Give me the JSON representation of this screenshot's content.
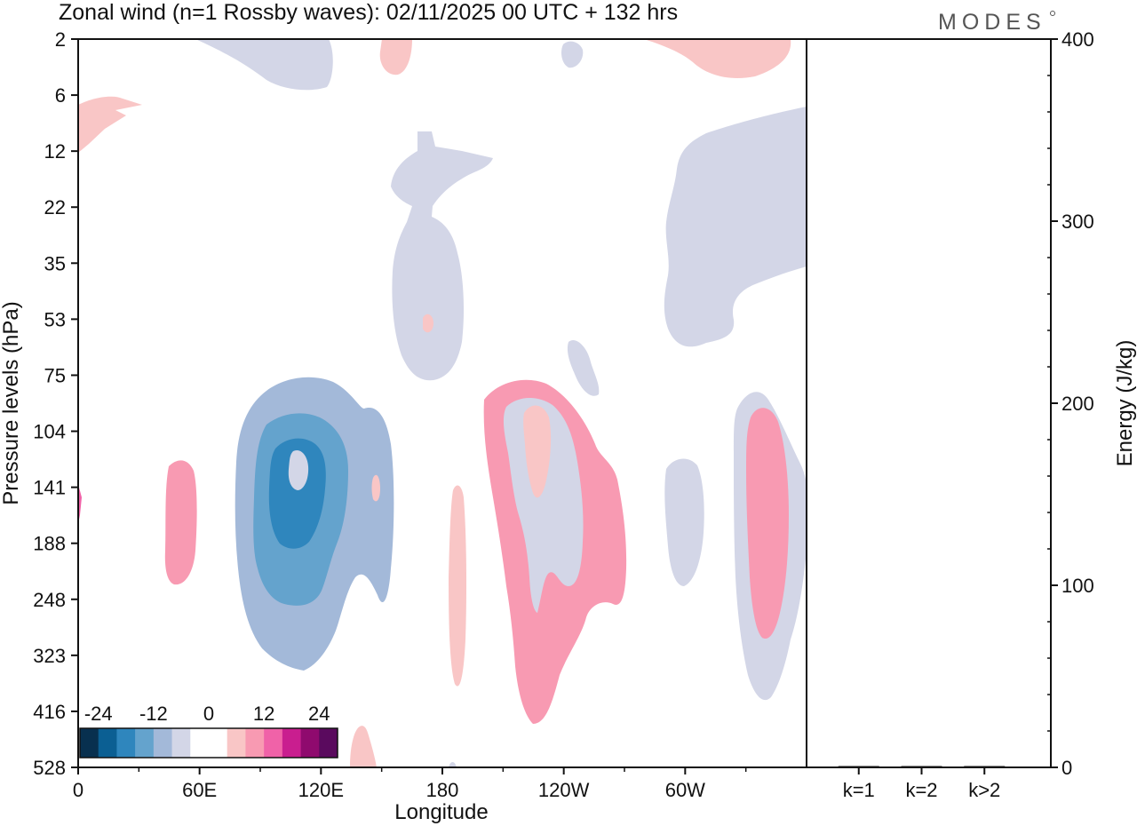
{
  "chart_data": {
    "type": "contour",
    "title": "Zonal wind (n=1 Rossby waves):  02/11/2025  00 UTC  + 132 hrs",
    "logo": "MODES",
    "xlabel": "Longitude",
    "ylabel": "Pressure levels (hPa)",
    "y2label": "Energy (J/kg)",
    "x_tick_labels": [
      "0",
      "60E",
      "120E",
      "180",
      "120W",
      "60W"
    ],
    "x_tick_degrees": [
      0,
      60,
      120,
      180,
      240,
      300
    ],
    "x_range_degrees": [
      0,
      360
    ],
    "pressure_levels": [
      "2",
      "6",
      "12",
      "22",
      "35",
      "53",
      "75",
      "104",
      "141",
      "188",
      "248",
      "323",
      "416",
      "528"
    ],
    "energy_ticks": [
      "0",
      "100",
      "200",
      "300",
      "400"
    ],
    "energy_range": [
      0,
      400
    ],
    "energy_bars": [
      {
        "label": "k=1",
        "value": 0.5
      },
      {
        "label": "k=2",
        "value": 0.5
      },
      {
        "label": "k>2",
        "value": 0.5
      }
    ],
    "colorbar": {
      "labels": [
        "-24",
        "-12",
        "0",
        "12",
        "24"
      ],
      "label_values": [
        -24,
        -12,
        0,
        12,
        24
      ],
      "range": [
        -28,
        28
      ],
      "colors": [
        "#08304f",
        "#0b5f93",
        "#2f86bd",
        "#64a3cd",
        "#a3b9d9",
        "#d3d6e7",
        "#ffffff",
        "#ffffff",
        "#f9c6c6",
        "#f89ab2",
        "#f062a8",
        "#c91e8f",
        "#8f0a6e",
        "#5a0a5e"
      ]
    },
    "contour_regions": [
      {
        "name": "neg-region-upper-1",
        "level": -4,
        "color": "#d3d6e7"
      },
      {
        "name": "pos-region-upper-1",
        "level": 4,
        "color": "#f9c6c6"
      },
      {
        "name": "neg-region-upper-2",
        "level": -4,
        "color": "#d3d6e7"
      },
      {
        "name": "pos-region-upper-2",
        "level": 4,
        "color": "#f9c6c6"
      },
      {
        "name": "pos-region-upper-3",
        "level": 4,
        "color": "#f9c6c6"
      },
      {
        "name": "neg-region-mid-1",
        "level": -4,
        "color": "#d3d6e7"
      },
      {
        "name": "neg-region-mid-2",
        "level": -4,
        "color": "#d3d6e7"
      },
      {
        "name": "pos-region-right",
        "level": 4,
        "color": "#f9c6c6"
      },
      {
        "name": "neg-region-low-1",
        "level": -4,
        "color": "#d3d6e7"
      },
      {
        "name": "neg-region-low-2",
        "level": -8,
        "color": "#a3b9d9"
      },
      {
        "name": "neg-region-low-3",
        "level": -12,
        "color": "#64a3cd"
      },
      {
        "name": "neg-region-low-4",
        "level": -16,
        "color": "#2f86bd"
      },
      {
        "name": "neg-region-small",
        "level": -4,
        "color": "#d3d6e7"
      },
      {
        "name": "pos-region-low-1",
        "level": 4,
        "color": "#f9c6c6"
      },
      {
        "name": "pos-region-low-2",
        "level": 8,
        "color": "#f89ab2"
      },
      {
        "name": "pos-region-low-3",
        "level": 12,
        "color": "#f062a8"
      },
      {
        "name": "pos-region-low-4",
        "level": 4,
        "color": "#f9c6c6"
      },
      {
        "name": "pos-region-low-5",
        "level": 8,
        "color": "#f89ab2"
      },
      {
        "name": "neg-region-low-5",
        "level": -4,
        "color": "#d3d6e7"
      },
      {
        "name": "pos-region-low-6",
        "level": 4,
        "color": "#f9c6c6"
      },
      {
        "name": "neg-region-low-6",
        "level": -4,
        "color": "#d3d6e7"
      }
    ]
  }
}
